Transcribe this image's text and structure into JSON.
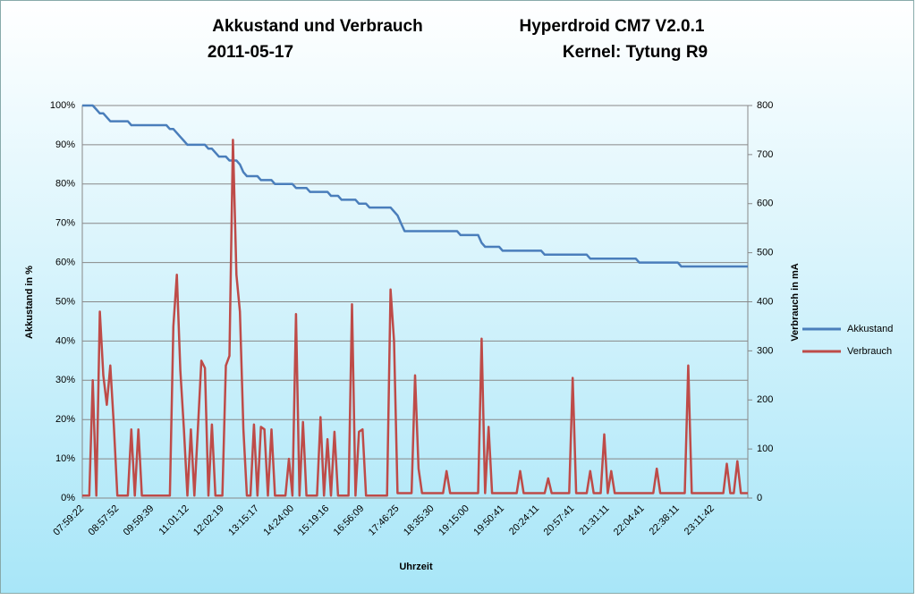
{
  "chart_data": {
    "type": "line",
    "title_lines": [
      "Akkustand und Verbrauch",
      "Hyperdroid CM7 V2.0.1",
      "2011-05-17",
      "Kernel: Tytung  R9"
    ],
    "x_label": "Uhrzeit",
    "y_label": "Akkustand in %",
    "y2_label": "Verbrauch in mA",
    "categories": [
      "07:59:22",
      null,
      null,
      null,
      null,
      null,
      null,
      null,
      null,
      null,
      "08:57:52",
      null,
      null,
      null,
      null,
      null,
      null,
      null,
      null,
      null,
      "09:59:39",
      null,
      null,
      null,
      null,
      null,
      null,
      null,
      null,
      null,
      "11:01:12",
      null,
      null,
      null,
      null,
      null,
      null,
      null,
      null,
      null,
      "12:02:19",
      null,
      null,
      null,
      null,
      null,
      null,
      null,
      null,
      null,
      "13:15:17",
      null,
      null,
      null,
      null,
      null,
      null,
      null,
      null,
      null,
      "14:24:00",
      null,
      null,
      null,
      null,
      null,
      null,
      null,
      null,
      null,
      "15:19:16",
      null,
      null,
      null,
      null,
      null,
      null,
      null,
      null,
      null,
      "16:56:09",
      null,
      null,
      null,
      null,
      null,
      null,
      null,
      null,
      null,
      "17:46:25",
      null,
      null,
      null,
      null,
      null,
      null,
      null,
      null,
      null,
      "18:35:30",
      null,
      null,
      null,
      null,
      null,
      null,
      null,
      null,
      null,
      "19:15:00",
      null,
      null,
      null,
      null,
      null,
      null,
      null,
      null,
      null,
      "19:50:41",
      null,
      null,
      null,
      null,
      null,
      null,
      null,
      null,
      null,
      "20:24:11",
      null,
      null,
      null,
      null,
      null,
      null,
      null,
      null,
      null,
      "20:57:41",
      null,
      null,
      null,
      null,
      null,
      null,
      null,
      null,
      null,
      "21:31:11",
      null,
      null,
      null,
      null,
      null,
      null,
      null,
      null,
      null,
      "22:04:41",
      null,
      null,
      null,
      null,
      null,
      null,
      null,
      null,
      null,
      "22:38:11",
      null,
      null,
      null,
      null,
      null,
      null,
      null,
      null,
      null,
      "23:11:42",
      null,
      null,
      null,
      null,
      null,
      null,
      null,
      null,
      null,
      null
    ],
    "series": [
      {
        "name": "Akkustand",
        "color": "#4a7ebb",
        "axis": "y",
        "values": [
          100,
          100,
          100,
          100,
          99,
          98,
          98,
          97,
          96,
          96,
          96,
          96,
          96,
          96,
          95,
          95,
          95,
          95,
          95,
          95,
          95,
          95,
          95,
          95,
          95,
          94,
          94,
          93,
          92,
          91,
          90,
          90,
          90,
          90,
          90,
          90,
          89,
          89,
          88,
          87,
          87,
          87,
          86,
          86,
          86,
          85,
          83,
          82,
          82,
          82,
          82,
          81,
          81,
          81,
          81,
          80,
          80,
          80,
          80,
          80,
          80,
          79,
          79,
          79,
          79,
          78,
          78,
          78,
          78,
          78,
          78,
          77,
          77,
          77,
          76,
          76,
          76,
          76,
          76,
          75,
          75,
          75,
          74,
          74,
          74,
          74,
          74,
          74,
          74,
          73,
          72,
          70,
          68,
          68,
          68,
          68,
          68,
          68,
          68,
          68,
          68,
          68,
          68,
          68,
          68,
          68,
          68,
          68,
          67,
          67,
          67,
          67,
          67,
          67,
          65,
          64,
          64,
          64,
          64,
          64,
          63,
          63,
          63,
          63,
          63,
          63,
          63,
          63,
          63,
          63,
          63,
          63,
          62,
          62,
          62,
          62,
          62,
          62,
          62,
          62,
          62,
          62,
          62,
          62,
          62,
          61,
          61,
          61,
          61,
          61,
          61,
          61,
          61,
          61,
          61,
          61,
          61,
          61,
          61,
          60,
          60,
          60,
          60,
          60,
          60,
          60,
          60,
          60,
          60,
          60,
          60,
          59,
          59,
          59,
          59,
          59,
          59,
          59,
          59,
          59,
          59,
          59,
          59,
          59,
          59,
          59,
          59,
          59,
          59,
          59,
          59
        ]
      },
      {
        "name": "Verbrauch",
        "color": "#be4b48",
        "axis": "y2",
        "values": [
          5,
          5,
          5,
          240,
          5,
          380,
          250,
          190,
          270,
          150,
          5,
          5,
          5,
          5,
          140,
          5,
          140,
          5,
          5,
          5,
          5,
          5,
          5,
          5,
          5,
          5,
          350,
          455,
          260,
          140,
          5,
          140,
          5,
          140,
          280,
          265,
          5,
          150,
          5,
          5,
          5,
          270,
          290,
          730,
          455,
          380,
          140,
          5,
          5,
          150,
          5,
          145,
          140,
          5,
          140,
          5,
          5,
          5,
          5,
          80,
          5,
          375,
          5,
          155,
          5,
          5,
          5,
          5,
          165,
          5,
          120,
          5,
          135,
          5,
          5,
          5,
          5,
          395,
          5,
          135,
          140,
          5,
          5,
          5,
          5,
          5,
          5,
          5,
          425,
          320,
          10,
          10,
          10,
          10,
          10,
          250,
          60,
          10,
          10,
          10,
          10,
          10,
          10,
          10,
          55,
          10,
          10,
          10,
          10,
          10,
          10,
          10,
          10,
          10,
          325,
          10,
          145,
          10,
          10,
          10,
          10,
          10,
          10,
          10,
          10,
          55,
          10,
          10,
          10,
          10,
          10,
          10,
          10,
          40,
          10,
          10,
          10,
          10,
          10,
          10,
          245,
          10,
          10,
          10,
          10,
          55,
          10,
          10,
          10,
          130,
          10,
          55,
          10,
          10,
          10,
          10,
          10,
          10,
          10,
          10,
          10,
          10,
          10,
          10,
          60,
          10,
          10,
          10,
          10,
          10,
          10,
          10,
          10,
          270,
          10,
          10,
          10,
          10,
          10,
          10,
          10,
          10,
          10,
          10,
          70,
          10,
          10,
          75,
          10,
          10,
          10
        ]
      }
    ],
    "ylim": [
      0,
      100
    ],
    "yticks": [
      {
        "value": 0,
        "label": "0%"
      },
      {
        "value": 10,
        "label": "10%"
      },
      {
        "value": 20,
        "label": "20%"
      },
      {
        "value": 30,
        "label": "30%"
      },
      {
        "value": 40,
        "label": "40%"
      },
      {
        "value": 50,
        "label": "50%"
      },
      {
        "value": 60,
        "label": "60%"
      },
      {
        "value": 70,
        "label": "70%"
      },
      {
        "value": 80,
        "label": "80%"
      },
      {
        "value": 90,
        "label": "90%"
      },
      {
        "value": 100,
        "label": "100%"
      }
    ],
    "y2lim": [
      0,
      800
    ],
    "y2ticks": [
      0,
      100,
      200,
      300,
      400,
      500,
      600,
      700,
      800
    ],
    "grid": true,
    "legend": "right"
  }
}
